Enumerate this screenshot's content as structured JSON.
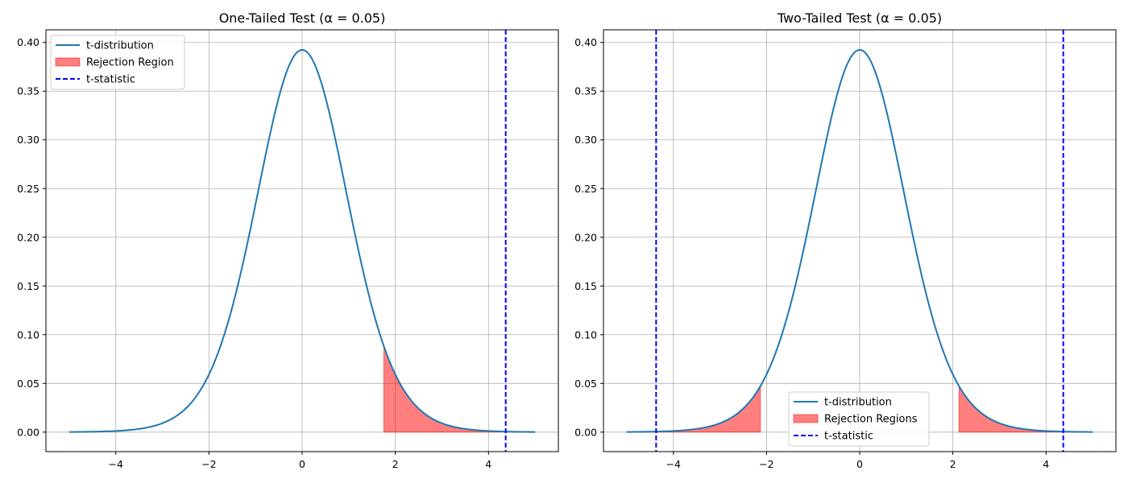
{
  "colors": {
    "curve": "#1f77b4",
    "rejection": "#ff0000",
    "tstat": "#0000ff",
    "grid": "#b0b0b0"
  },
  "chart_data": [
    {
      "type": "line",
      "title": "One-Tailed Test (α = 0.05)",
      "xlim": [
        -5.5,
        5.5
      ],
      "ylim": [
        -0.02,
        0.413
      ],
      "xticks": [
        -4,
        -2,
        0,
        2,
        4
      ],
      "xtick_labels": [
        "−4",
        "−2",
        "0",
        "2",
        "4"
      ],
      "yticks": [
        0.0,
        0.05,
        0.1,
        0.15,
        0.2,
        0.25,
        0.3,
        0.35,
        0.4
      ],
      "ytick_labels": [
        "0.00",
        "0.05",
        "0.10",
        "0.15",
        "0.20",
        "0.25",
        "0.30",
        "0.35",
        "0.40"
      ],
      "grid": true,
      "df": 15,
      "curve_range": [
        -5,
        5
      ],
      "rejection_regions": [
        [
          1.753,
          5
        ]
      ],
      "t_statistic_lines": [
        4.37
      ],
      "legend": {
        "placement": "upper-left",
        "entries": [
          {
            "label": "t-distribution",
            "kind": "line"
          },
          {
            "label": "Rejection Region",
            "kind": "patch"
          },
          {
            "label": "t-statistic",
            "kind": "dashed"
          }
        ]
      }
    },
    {
      "type": "line",
      "title": "Two-Tailed Test (α = 0.05)",
      "xlim": [
        -5.5,
        5.5
      ],
      "ylim": [
        -0.02,
        0.413
      ],
      "xticks": [
        -4,
        -2,
        0,
        2,
        4
      ],
      "xtick_labels": [
        "−4",
        "−2",
        "0",
        "2",
        "4"
      ],
      "yticks": [
        0.0,
        0.05,
        0.1,
        0.15,
        0.2,
        0.25,
        0.3,
        0.35,
        0.4
      ],
      "ytick_labels": [
        "0.00",
        "0.05",
        "0.10",
        "0.15",
        "0.20",
        "0.25",
        "0.30",
        "0.35",
        "0.40"
      ],
      "grid": true,
      "df": 15,
      "curve_range": [
        -5,
        5
      ],
      "rejection_regions": [
        [
          -5,
          -2.131
        ],
        [
          2.131,
          5
        ]
      ],
      "t_statistic_lines": [
        -4.37,
        4.37
      ],
      "legend": {
        "placement": "lower-center",
        "entries": [
          {
            "label": "t-distribution",
            "kind": "line"
          },
          {
            "label": "Rejection Regions",
            "kind": "patch"
          },
          {
            "label": "t-statistic",
            "kind": "dashed"
          }
        ]
      }
    }
  ]
}
